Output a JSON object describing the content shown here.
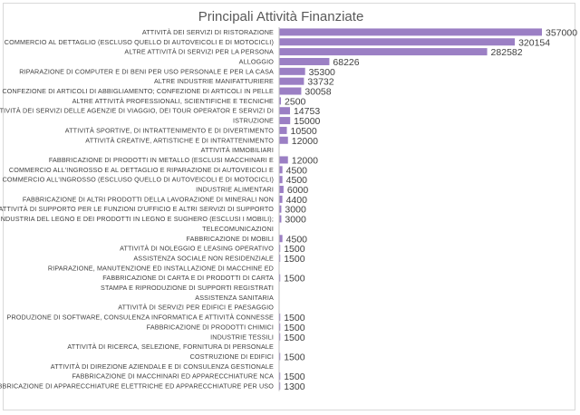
{
  "chart_data": {
    "type": "bar",
    "orientation": "horizontal",
    "title": "Principali Attività Finanziate",
    "categories": [
      "ATTIVITÀ DEI SERVIZI DI RISTORAZIONE",
      "COMMERCIO AL DETTAGLIO (ESCLUSO QUELLO DI AUTOVEICOLI E DI MOTOCICLI)",
      "ALTRE ATTIVITÀ DI SERVIZI PER LA PERSONA",
      "ALLOGGIO",
      "RIPARAZIONE DI COMPUTER E DI BENI PER USO PERSONALE E PER LA CASA",
      "ALTRE INDUSTRIE MANIFATTURIERE",
      "CONFEZIONE DI ARTICOLI DI ABBIGLIAMENTO; CONFEZIONE DI ARTICOLI IN PELLE",
      "ALTRE ATTIVITÀ PROFESSIONALI, SCIENTIFICHE E TECNICHE",
      "ATTIVITÀ DEI SERVIZI DELLE AGENZIE DI VIAGGIO, DEI TOUR OPERATOR E SERVIZI DI",
      "ISTRUZIONE",
      "ATTIVITÀ SPORTIVE, DI INTRATTENIMENTO E DI DIVERTIMENTO",
      "ATTIVITÀ CREATIVE, ARTISTICHE E DI INTRATTENIMENTO",
      "ATTIVITÀ IMMOBILIARI",
      "FABBRICAZIONE DI PRODOTTI IN METALLO (ESCLUSI MACCHINARI E",
      "COMMERCIO ALL'INGROSSO E AL DETTAGLIO E RIPARAZIONE DI AUTOVEICOLI E",
      "COMMERCIO ALL'INGROSSO (ESCLUSO QUELLO DI AUTOVEICOLI E DI MOTOCICLI)",
      "INDUSTRIE ALIMENTARI",
      "FABBRICAZIONE DI ALTRI PRODOTTI DELLA LAVORAZIONE DI MINERALI NON",
      "ATTIVITÀ DI SUPPORTO PER LE FUNZIONI D'UFFICIO E ALTRI SERVIZI DI SUPPORTO",
      "INDUSTRIA DEL LEGNO E DEI PRODOTTI IN LEGNO E SUGHERO (ESCLUSI I MOBILI);",
      "TELECOMUNICAZIONI",
      "FABBRICAZIONE DI MOBILI",
      "ATTIVITÀ DI NOLEGGIO E LEASING OPERATIVO",
      "ASSISTENZA SOCIALE NON RESIDENZIALE",
      "RIPARAZIONE, MANUTENZIONE ED INSTALLAZIONE DI MACCHINE ED",
      "FABBRICAZIONE DI CARTA E DI PRODOTTI DI CARTA",
      "STAMPA E RIPRODUZIONE DI SUPPORTI REGISTRATI",
      "ASSISTENZA SANITARIA",
      "ATTIVITÀ DI SERVIZI PER EDIFICI E PAESAGGIO",
      "PRODUZIONE DI SOFTWARE, CONSULENZA INFORMATICA E ATTIVITÀ CONNESSE",
      "FABBRICAZIONE DI PRODOTTI CHIMICI",
      "INDUSTRIE TESSILI",
      "ATTIVITÀ DI RICERCA, SELEZIONE, FORNITURA DI PERSONALE",
      "COSTRUZIONE DI EDIFICI",
      "ATTIVITÀ DI DIREZIONE AZIENDALE E DI CONSULENZA GESTIONALE",
      "FABBRICAZIONE DI MACCHINARI ED APPARECCHIATURE NCA",
      "FABBRICAZIONE DI APPARECCHIATURE ELETTRICHE ED APPARECCHIATURE PER USO"
    ],
    "values": [
      357000,
      320154,
      282582,
      68226,
      35300,
      33732,
      30058,
      2500,
      14753,
      15000,
      10500,
      12000,
      null,
      12000,
      4500,
      4500,
      6000,
      4400,
      3000,
      3000,
      null,
      4500,
      1500,
      1500,
      null,
      1500,
      null,
      null,
      null,
      1500,
      1500,
      1500,
      null,
      1500,
      null,
      1500,
      1300
    ],
    "value_labels": [
      "357000",
      "320154",
      "282582",
      "68226",
      "35300",
      "33732",
      "30058",
      "2500",
      "14753",
      "15000",
      "10500",
      "12000",
      "",
      "12000",
      "4500",
      "4500",
      "6000",
      "4400",
      "3000",
      "3000",
      "",
      "4500",
      "1500",
      "1500",
      "",
      "1500",
      "",
      "",
      "",
      "1500",
      "1500",
      "1500",
      "",
      "1500",
      "",
      "1500",
      "1300"
    ],
    "xlim": [
      0,
      357000
    ],
    "grid": false,
    "legend": "none",
    "bar_color": "#9b7fc4"
  }
}
